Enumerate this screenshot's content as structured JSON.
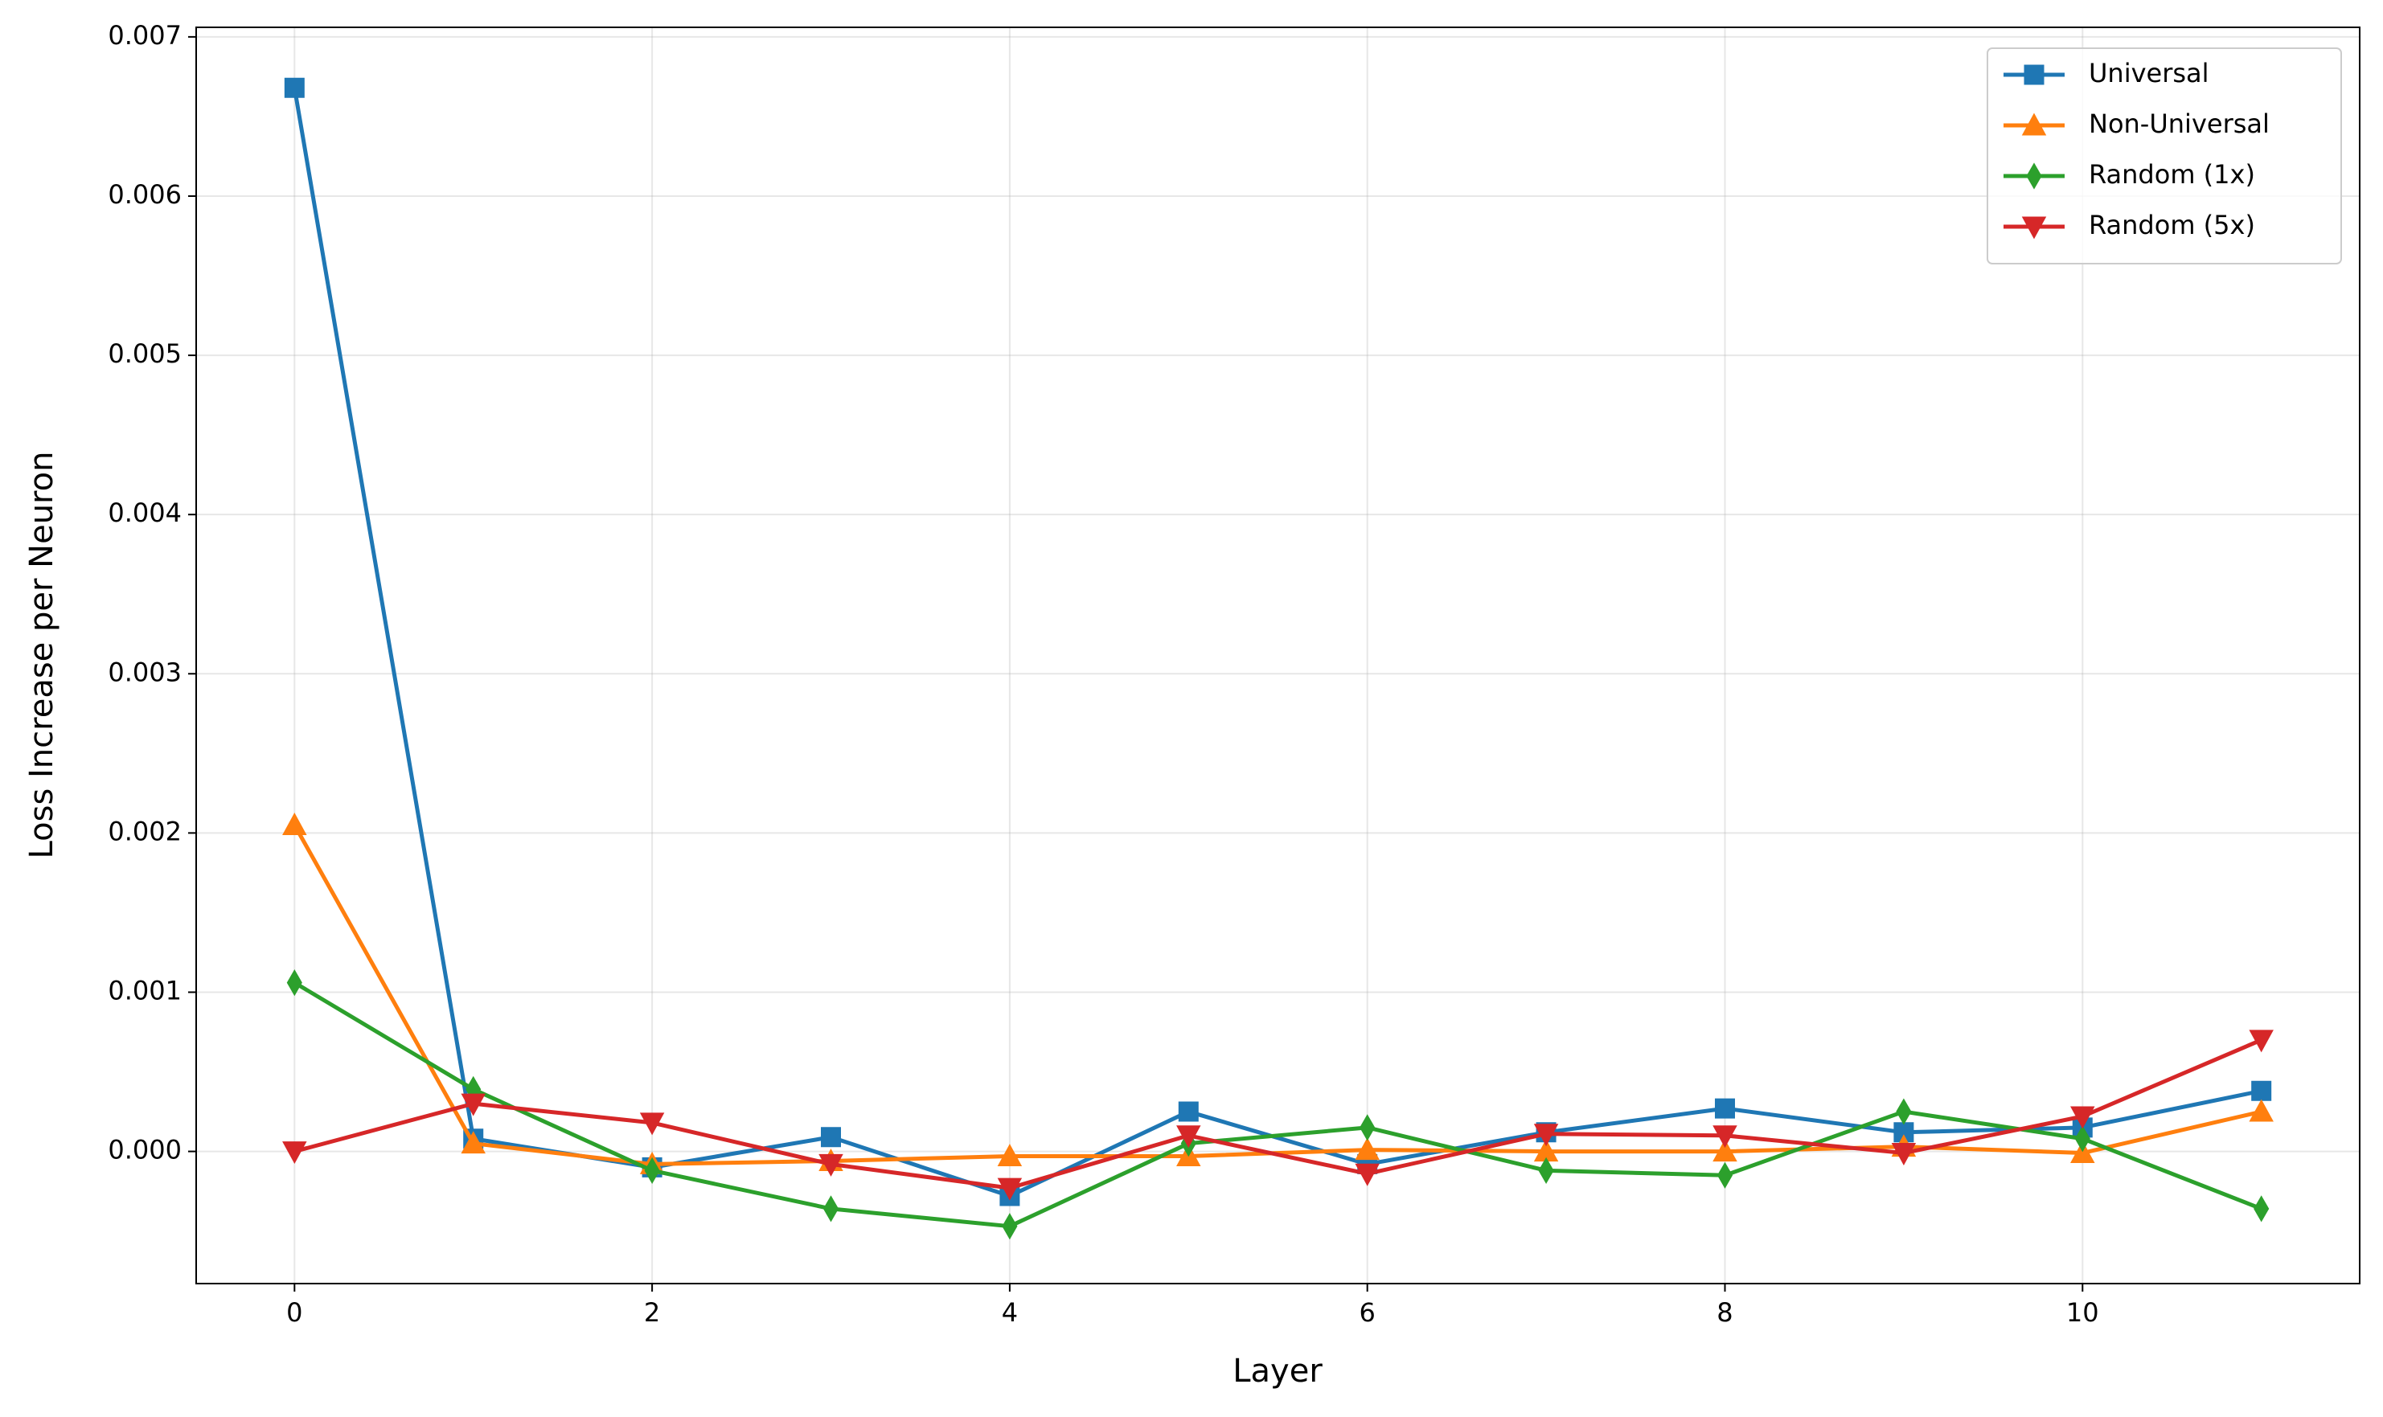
{
  "chart_data": {
    "type": "line",
    "xlabel": "Layer",
    "ylabel": "Loss Increase per Neuron",
    "x": [
      0,
      1,
      2,
      3,
      4,
      5,
      6,
      7,
      8,
      9,
      10,
      11
    ],
    "series": [
      {
        "name": "Universal",
        "color": "#1f77b4",
        "marker": "square",
        "values": [
          0.00668,
          8e-05,
          -0.0001,
          9e-05,
          -0.00028,
          0.00025,
          -8e-05,
          0.00012,
          0.00027,
          0.00012,
          0.00015,
          0.00038
        ]
      },
      {
        "name": "Non-Universal",
        "color": "#ff7f0e",
        "marker": "triangle-up",
        "values": [
          0.00205,
          5e-05,
          -8e-05,
          -6e-05,
          -3e-05,
          -3e-05,
          1e-05,
          0.0,
          0.0,
          3e-05,
          -1e-05,
          0.00025
        ]
      },
      {
        "name": "Random (1x)",
        "color": "#2ca02c",
        "marker": "thin-diamond",
        "values": [
          0.00106,
          0.00039,
          -0.00012,
          -0.00036,
          -0.00047,
          5e-05,
          0.00015,
          -0.00012,
          -0.00015,
          0.00025,
          8e-05,
          -0.00036
        ]
      },
      {
        "name": "Random (5x)",
        "color": "#d62728",
        "marker": "triangle-down",
        "values": [
          0.0,
          0.0003,
          0.00018,
          -8e-05,
          -0.00023,
          0.0001,
          -0.00014,
          0.00011,
          0.0001,
          -1e-05,
          0.00022,
          0.0007
        ]
      }
    ],
    "xlim": [
      -0.55,
      11.55
    ],
    "ylim": [
      -0.00083,
      0.00706
    ],
    "xticks": [
      0,
      2,
      4,
      6,
      8,
      10
    ],
    "yticks": [
      {
        "value": 0,
        "label": "0.000"
      },
      {
        "value": 0.001,
        "label": "0.001"
      },
      {
        "value": 0.002,
        "label": "0.002"
      },
      {
        "value": 0.003,
        "label": "0.003"
      },
      {
        "value": 0.004,
        "label": "0.004"
      },
      {
        "value": 0.005,
        "label": "0.005"
      },
      {
        "value": 0.006,
        "label": "0.006"
      },
      {
        "value": 0.007,
        "label": "0.007"
      }
    ],
    "grid": true,
    "legend": "upper right"
  }
}
